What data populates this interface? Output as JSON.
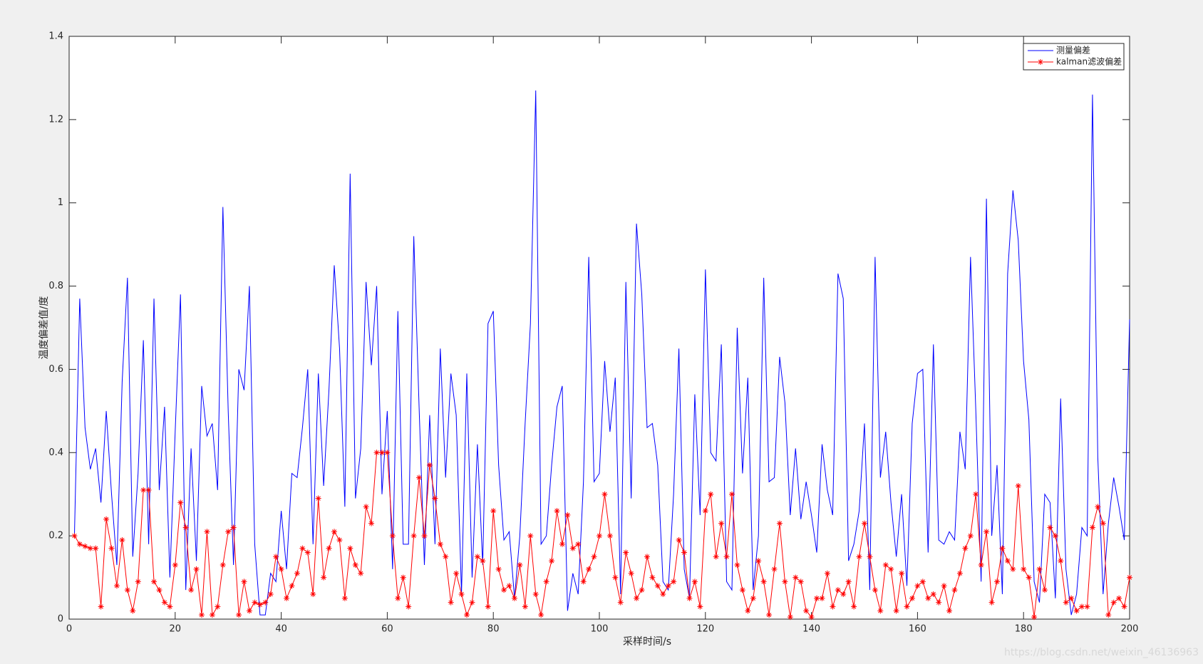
{
  "chart_data": {
    "type": "line",
    "xlabel": "采样时间/s",
    "ylabel": "温度偏差值/度",
    "x": [
      1,
      2,
      3,
      4,
      5,
      6,
      7,
      8,
      9,
      10,
      11,
      12,
      13,
      14,
      15,
      16,
      17,
      18,
      19,
      20,
      21,
      22,
      23,
      24,
      25,
      26,
      27,
      28,
      29,
      30,
      31,
      32,
      33,
      34,
      35,
      36,
      37,
      38,
      39,
      40,
      41,
      42,
      43,
      44,
      45,
      46,
      47,
      48,
      49,
      50,
      51,
      52,
      53,
      54,
      55,
      56,
      57,
      58,
      59,
      60,
      61,
      62,
      63,
      64,
      65,
      66,
      67,
      68,
      69,
      70,
      71,
      72,
      73,
      74,
      75,
      76,
      77,
      78,
      79,
      80,
      81,
      82,
      83,
      84,
      85,
      86,
      87,
      88,
      89,
      90,
      91,
      92,
      93,
      94,
      95,
      96,
      97,
      98,
      99,
      100,
      101,
      102,
      103,
      104,
      105,
      106,
      107,
      108,
      109,
      110,
      111,
      112,
      113,
      114,
      115,
      116,
      117,
      118,
      119,
      120,
      121,
      122,
      123,
      124,
      125,
      126,
      127,
      128,
      129,
      130,
      131,
      132,
      133,
      134,
      135,
      136,
      137,
      138,
      139,
      140,
      141,
      142,
      143,
      144,
      145,
      146,
      147,
      148,
      149,
      150,
      151,
      152,
      153,
      154,
      155,
      156,
      157,
      158,
      159,
      160,
      161,
      162,
      163,
      164,
      165,
      166,
      167,
      168,
      169,
      170,
      171,
      172,
      173,
      174,
      175,
      176,
      177,
      178,
      179,
      180,
      181,
      182,
      183,
      184,
      185,
      186,
      187,
      188,
      189,
      190,
      191,
      192,
      193,
      194,
      195,
      196,
      197,
      198,
      199,
      200
    ],
    "series": [
      {
        "name": "测量偏差",
        "color": "#0000ff",
        "values": [
          0.2,
          0.77,
          0.46,
          0.36,
          0.41,
          0.28,
          0.5,
          0.3,
          0.13,
          0.57,
          0.82,
          0.15,
          0.35,
          0.67,
          0.18,
          0.77,
          0.31,
          0.51,
          0.1,
          0.45,
          0.78,
          0.07,
          0.41,
          0.14,
          0.56,
          0.44,
          0.47,
          0.31,
          0.99,
          0.5,
          0.13,
          0.6,
          0.55,
          0.8,
          0.18,
          0.01,
          0.01,
          0.11,
          0.09,
          0.26,
          0.12,
          0.35,
          0.34,
          0.46,
          0.6,
          0.18,
          0.59,
          0.32,
          0.55,
          0.85,
          0.65,
          0.27,
          1.07,
          0.29,
          0.41,
          0.81,
          0.61,
          0.8,
          0.3,
          0.5,
          0.12,
          0.74,
          0.18,
          0.18,
          0.92,
          0.51,
          0.13,
          0.49,
          0.18,
          0.65,
          0.34,
          0.59,
          0.49,
          0.06,
          0.59,
          0.1,
          0.42,
          0.13,
          0.71,
          0.74,
          0.37,
          0.19,
          0.21,
          0.05,
          0.2,
          0.47,
          0.71,
          1.27,
          0.18,
          0.2,
          0.37,
          0.51,
          0.56,
          0.02,
          0.11,
          0.06,
          0.33,
          0.87,
          0.33,
          0.35,
          0.62,
          0.45,
          0.58,
          0.06,
          0.81,
          0.29,
          0.95,
          0.78,
          0.46,
          0.47,
          0.37,
          0.09,
          0.07,
          0.3,
          0.65,
          0.12,
          0.05,
          0.54,
          0.25,
          0.84,
          0.4,
          0.38,
          0.66,
          0.09,
          0.07,
          0.7,
          0.35,
          0.58,
          0.07,
          0.2,
          0.82,
          0.33,
          0.34,
          0.63,
          0.52,
          0.25,
          0.41,
          0.24,
          0.33,
          0.25,
          0.16,
          0.42,
          0.31,
          0.25,
          0.83,
          0.77,
          0.14,
          0.18,
          0.26,
          0.47,
          0.07,
          0.87,
          0.34,
          0.45,
          0.28,
          0.15,
          0.3,
          0.08,
          0.47,
          0.59,
          0.6,
          0.16,
          0.66,
          0.19,
          0.18,
          0.21,
          0.19,
          0.45,
          0.36,
          0.87,
          0.5,
          0.09,
          1.01,
          0.2,
          0.37,
          0.06,
          0.83,
          1.03,
          0.91,
          0.62,
          0.48,
          0.09,
          0.04,
          0.3,
          0.28,
          0.05,
          0.53,
          0.12,
          0.01,
          0.06,
          0.22,
          0.2,
          1.26,
          0.39,
          0.06,
          0.23,
          0.34,
          0.27,
          0.19,
          0.72
        ]
      },
      {
        "name": "kalman滤波偏差",
        "color": "#ff0000",
        "marker": "*",
        "values": [
          0.2,
          0.18,
          0.175,
          0.17,
          0.17,
          0.03,
          0.24,
          0.17,
          0.08,
          0.19,
          0.07,
          0.02,
          0.09,
          0.31,
          0.31,
          0.09,
          0.07,
          0.04,
          0.03,
          0.13,
          0.28,
          0.22,
          0.07,
          0.12,
          0.01,
          0.21,
          0.01,
          0.03,
          0.13,
          0.21,
          0.22,
          0.01,
          0.09,
          0.02,
          0.04,
          0.035,
          0.04,
          0.06,
          0.15,
          0.12,
          0.05,
          0.08,
          0.11,
          0.17,
          0.16,
          0.06,
          0.29,
          0.1,
          0.17,
          0.21,
          0.19,
          0.05,
          0.17,
          0.13,
          0.11,
          0.27,
          0.23,
          0.4,
          0.4,
          0.4,
          0.2,
          0.05,
          0.1,
          0.03,
          0.2,
          0.34,
          0.2,
          0.37,
          0.29,
          0.18,
          0.15,
          0.04,
          0.11,
          0.06,
          0.01,
          0.04,
          0.15,
          0.14,
          0.03,
          0.26,
          0.12,
          0.07,
          0.08,
          0.05,
          0.13,
          0.03,
          0.2,
          0.06,
          0.01,
          0.09,
          0.14,
          0.26,
          0.18,
          0.25,
          0.17,
          0.18,
          0.09,
          0.12,
          0.15,
          0.2,
          0.3,
          0.2,
          0.1,
          0.04,
          0.16,
          0.11,
          0.05,
          0.07,
          0.15,
          0.1,
          0.08,
          0.06,
          0.08,
          0.09,
          0.19,
          0.16,
          0.05,
          0.09,
          0.03,
          0.26,
          0.3,
          0.15,
          0.23,
          0.15,
          0.3,
          0.13,
          0.07,
          0.02,
          0.05,
          0.14,
          0.09,
          0.01,
          0.12,
          0.23,
          0.09,
          0.005,
          0.1,
          0.09,
          0.02,
          0.005,
          0.05,
          0.05,
          0.11,
          0.03,
          0.07,
          0.06,
          0.09,
          0.03,
          0.15,
          0.23,
          0.15,
          0.07,
          0.02,
          0.13,
          0.12,
          0.02,
          0.11,
          0.03,
          0.05,
          0.08,
          0.09,
          0.05,
          0.06,
          0.04,
          0.08,
          0.02,
          0.07,
          0.11,
          0.17,
          0.2,
          0.3,
          0.13,
          0.21,
          0.04,
          0.09,
          0.17,
          0.14,
          0.12,
          0.32,
          0.12,
          0.1,
          0.005,
          0.12,
          0.07,
          0.22,
          0.2,
          0.14,
          0.04,
          0.05,
          0.02,
          0.03,
          0.03,
          0.22,
          0.27,
          0.23,
          0.01,
          0.04,
          0.05,
          0.03,
          0.1
        ]
      }
    ],
    "xlim": [
      0,
      200
    ],
    "xticks": [
      0,
      20,
      40,
      60,
      80,
      100,
      120,
      140,
      160,
      180,
      200
    ],
    "ylim": [
      0,
      1.4
    ],
    "yticks": [
      0,
      0.2,
      0.4,
      0.6,
      0.8,
      1,
      1.2,
      1.4
    ],
    "legend": "upper right",
    "watermark": "https://blog.csdn.net/weixin_46136963"
  }
}
